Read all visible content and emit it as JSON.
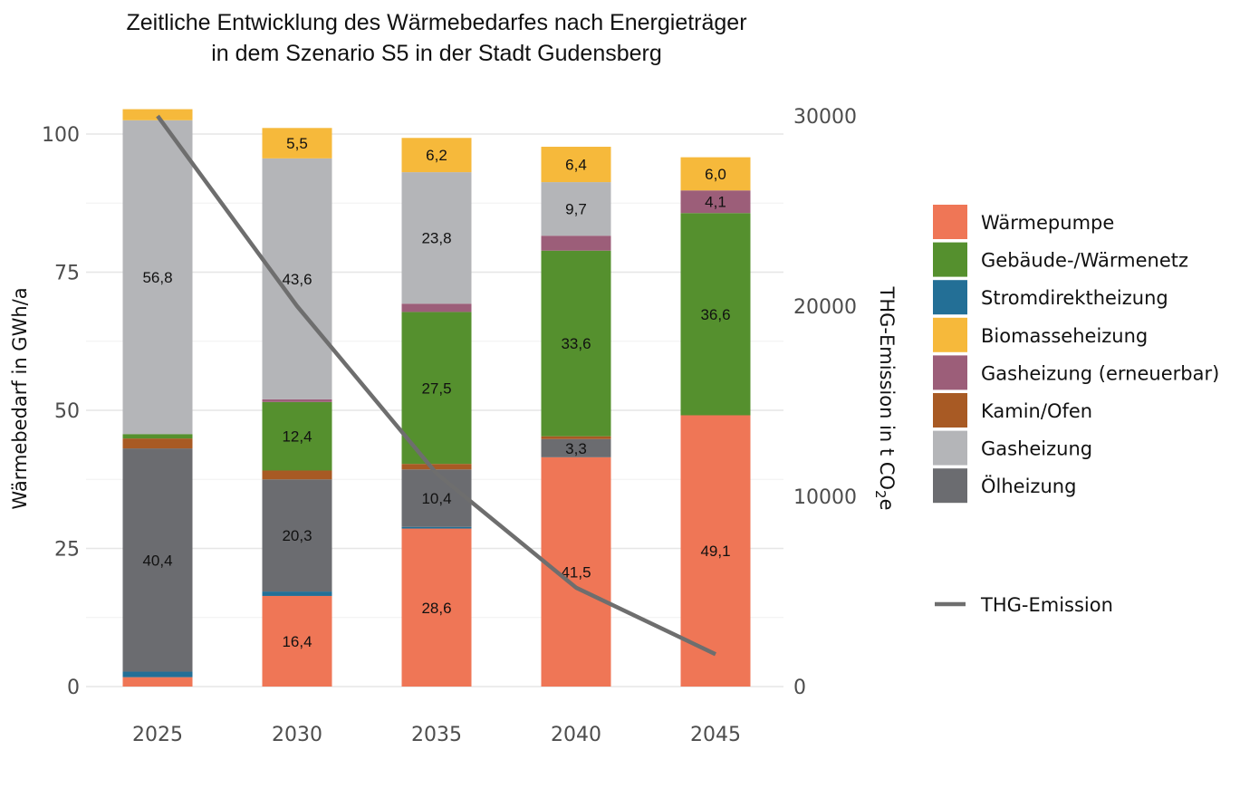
{
  "chart_data": {
    "type": "bar",
    "stacked": true,
    "title": "Zeitliche Entwicklung des Wärmebedarfes nach Energieträger",
    "subtitle": "in dem Szenario S5 in der Stadt Gudensberg",
    "ylabel": "Wärmebedarf in GWh/a",
    "y2label_main": "THG-Emission in t CO",
    "y2label_sub": "2",
    "y2label_tail": "e",
    "ylim": [
      0,
      105
    ],
    "y2lim": [
      0,
      30000
    ],
    "yticks": [
      "0",
      "25",
      "50",
      "75",
      "100"
    ],
    "y2ticks": [
      "0",
      "10000",
      "20000",
      "30000"
    ],
    "categories": [
      "2025",
      "2030",
      "2035",
      "2040",
      "2045"
    ],
    "grid": true,
    "legend_position": "right",
    "series": [
      {
        "name": "Ölheizung",
        "color": "#6b6c70",
        "values": [
          40.4,
          20.3,
          10.4,
          3.3,
          0
        ],
        "labels": [
          "40,4",
          "20,3",
          "10,4",
          "3,3",
          ""
        ]
      },
      {
        "name": "Gasheizung",
        "color": "#b4b5b8",
        "values": [
          56.8,
          43.6,
          23.8,
          9.7,
          0
        ],
        "labels": [
          "56,8",
          "43,6",
          "23,8",
          "9,7",
          ""
        ]
      },
      {
        "name": "Kamin/Ofen",
        "color": "#a85a24",
        "values": [
          1.8,
          1.6,
          1.0,
          0.5,
          0
        ],
        "labels": [
          "",
          "",
          "",
          "",
          ""
        ]
      },
      {
        "name": "Gasheizung (erneuerbar)",
        "color": "#9c5e79",
        "values": [
          0,
          0.5,
          1.5,
          2.7,
          4.1
        ],
        "labels": [
          "",
          "",
          "",
          "",
          "4,1"
        ]
      },
      {
        "name": "Biomasseheizung",
        "color": "#f6b93b",
        "values": [
          2.0,
          5.5,
          6.2,
          6.4,
          6.0
        ],
        "labels": [
          "",
          "5,5",
          "6,2",
          "6,4",
          "6,0"
        ]
      },
      {
        "name": "Stromdirektheizung",
        "color": "#236f96",
        "values": [
          1.0,
          0.8,
          0.3,
          0,
          0
        ],
        "labels": [
          "",
          "",
          "",
          "",
          ""
        ]
      },
      {
        "name": "Gebäude-/Wärmenetz",
        "color": "#55902e",
        "values": [
          0.8,
          12.4,
          27.5,
          33.6,
          36.6
        ],
        "labels": [
          "",
          "12,4",
          "27,5",
          "33,6",
          "36,6"
        ]
      },
      {
        "name": "Wärmepumpe",
        "color": "#ef7656",
        "values": [
          1.7,
          16.4,
          28.6,
          41.5,
          49.1
        ],
        "labels": [
          "",
          "16,4",
          "28,6",
          "41,5",
          "49,1"
        ]
      }
    ],
    "stack_order": [
      "Wärmepumpe",
      "Stromdirektheizung",
      "Ölheizung",
      "Kamin/Ofen",
      "Gebäude-/Wärmenetz",
      "Gasheizung (erneuerbar)",
      "Gasheizung",
      "Biomasseheizung"
    ],
    "legend_order": [
      "Wärmepumpe",
      "Gebäude-/Wärmenetz",
      "Stromdirektheizung",
      "Biomasseheizung",
      "Gasheizung (erneuerbar)",
      "Kamin/Ofen",
      "Gasheizung",
      "Ölheizung"
    ],
    "line": {
      "name": "THG-Emission",
      "color": "#6e6e6e",
      "axis": "right",
      "values": [
        30000,
        20000,
        11200,
        5200,
        1700
      ]
    }
  }
}
